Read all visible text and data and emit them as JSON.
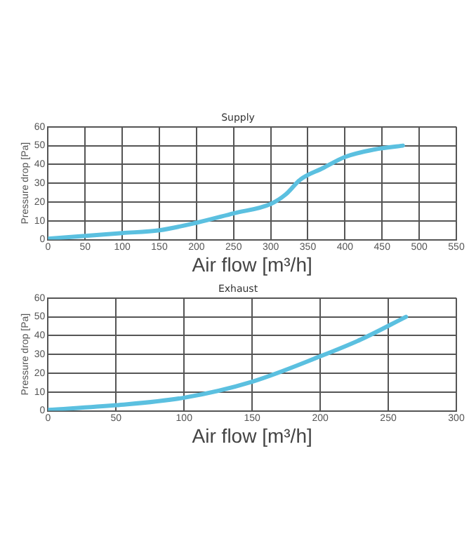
{
  "chart_data": [
    {
      "type": "line",
      "title": "Supply",
      "xlabel": "Air flow [m³/h]",
      "ylabel": "Pressure drop [Pa]",
      "x": [
        0,
        50,
        100,
        150,
        200,
        250,
        300,
        320,
        340,
        370,
        400,
        440,
        478
      ],
      "series": [
        {
          "color": "#5bc0e0",
          "values": [
            0.5,
            2,
            3.5,
            5,
            9,
            14,
            19,
            24,
            32,
            38,
            44,
            48,
            50
          ]
        }
      ],
      "xlim": [
        0,
        550
      ],
      "xticks": [
        0,
        50,
        100,
        150,
        200,
        250,
        300,
        350,
        400,
        450,
        500,
        550
      ],
      "ylim": [
        0,
        60
      ],
      "yticks": [
        0,
        10,
        20,
        30,
        40,
        50,
        60
      ],
      "grid": true,
      "marker": "none",
      "line_style": "solid"
    },
    {
      "type": "line",
      "title": "Exhaust",
      "xlabel": "Air flow [m³/h]",
      "ylabel": "Pressure drop [Pa]",
      "x": [
        0,
        50,
        100,
        150,
        200,
        230,
        263
      ],
      "series": [
        {
          "color": "#5bc0e0",
          "values": [
            0.5,
            3,
            7,
            15.5,
            29,
            38,
            50
          ]
        }
      ],
      "xlim": [
        0,
        300
      ],
      "xticks": [
        0,
        50,
        100,
        150,
        200,
        250,
        300
      ],
      "ylim": [
        0,
        60
      ],
      "yticks": [
        0,
        10,
        20,
        30,
        40,
        50,
        60
      ],
      "grid": true,
      "marker": "none",
      "line_style": "solid"
    }
  ]
}
